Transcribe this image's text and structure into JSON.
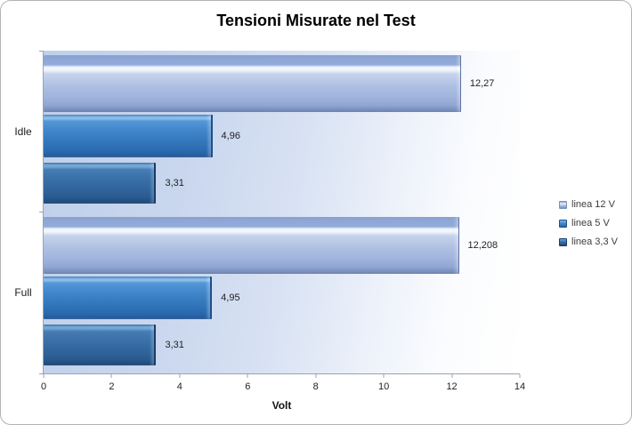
{
  "window": {
    "background_color": "#ffffff",
    "border_color": "#b4b4b4"
  },
  "chart_data": {
    "type": "bar",
    "orientation": "horizontal",
    "title": "Tensioni Misurate nel Test",
    "xlabel": "Volt",
    "categories": [
      "Idle",
      "Full"
    ],
    "series": [
      {
        "name": "linea 12 V",
        "values": [
          12.27,
          12.208
        ],
        "labels": [
          "12,27",
          "12,208"
        ],
        "color": "#a9bce0"
      },
      {
        "name": "linea 5 V",
        "values": [
          4.96,
          4.95
        ],
        "labels": [
          "4,96",
          "4,95"
        ],
        "color": "#3c80c4"
      },
      {
        "name": "linea 3,3 V",
        "values": [
          3.31,
          3.31
        ],
        "labels": [
          "3,31",
          "3,31"
        ],
        "color": "#33699f"
      }
    ],
    "xlim": [
      0,
      14
    ],
    "x_ticks": [
      "0",
      "2",
      "4",
      "6",
      "8",
      "10",
      "12",
      "14"
    ],
    "grid": false,
    "data_labels": true,
    "legend_position": "right",
    "plot_background": "gradient light-blue to white"
  }
}
